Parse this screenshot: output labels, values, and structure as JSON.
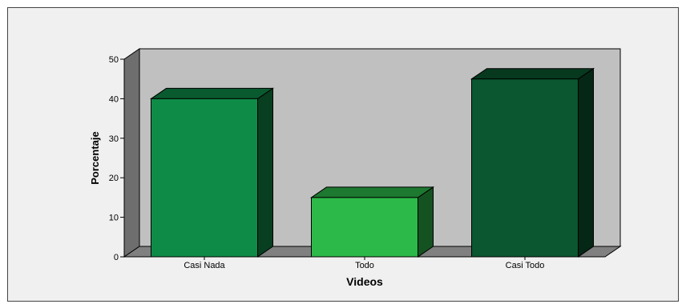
{
  "chart_data": {
    "type": "bar",
    "style": "3d",
    "categories": [
      "Casi Nada",
      "Todo",
      "Casi Todo"
    ],
    "values": [
      40,
      15,
      45
    ],
    "colors": [
      "#0f8b48",
      "#2db84a",
      "#0a5730"
    ],
    "xlabel": "Videos",
    "ylabel": "Porcentaje",
    "ylim": [
      0,
      50
    ],
    "yticks": [
      "0",
      "10",
      "20",
      "30",
      "40",
      "50"
    ],
    "grid": false,
    "wall_color": "#c0c0c0",
    "floor_color": "#808080",
    "frame_background": "#f0f0f0"
  }
}
